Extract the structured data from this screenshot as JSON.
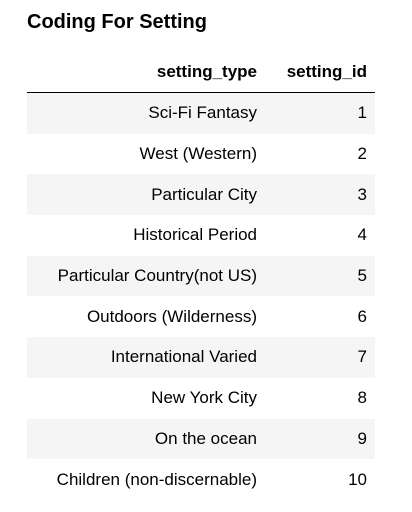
{
  "title": "Coding For Setting",
  "table": {
    "columns": [
      "setting_type",
      "setting_id"
    ],
    "rows": [
      [
        "Sci-Fi Fantasy",
        "1"
      ],
      [
        "West (Western)",
        "2"
      ],
      [
        "Particular City",
        "3"
      ],
      [
        "Historical Period",
        "4"
      ],
      [
        "Particular Country(not US)",
        "5"
      ],
      [
        "Outdoors (Wilderness)",
        "6"
      ],
      [
        "International Varied",
        "7"
      ],
      [
        "New York City",
        "8"
      ],
      [
        "On the ocean",
        "9"
      ],
      [
        "Children (non-discernable)",
        "10"
      ]
    ]
  },
  "colors": {
    "stripe": "#f5f5f5",
    "text": "#000000"
  }
}
